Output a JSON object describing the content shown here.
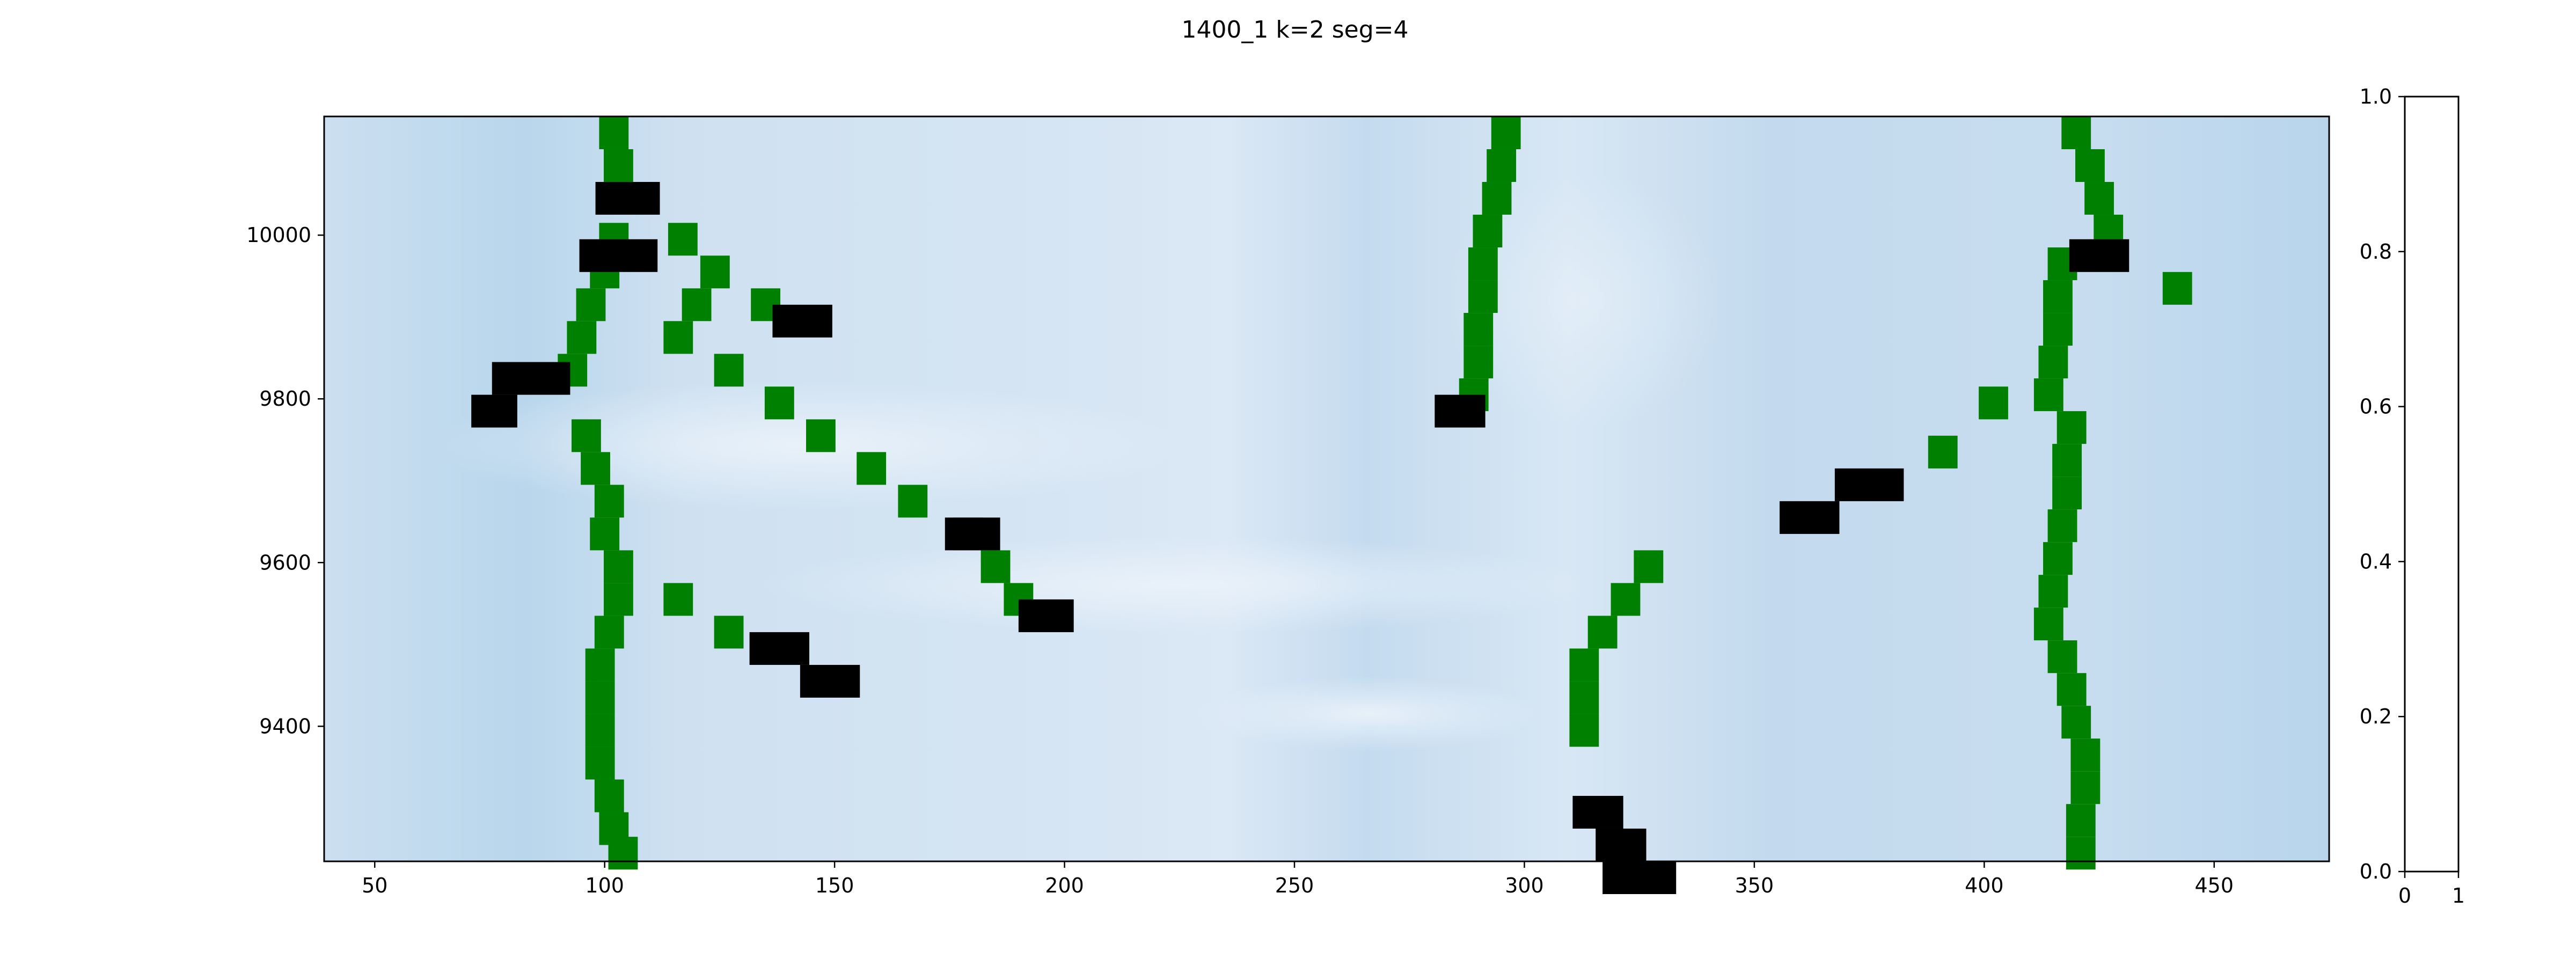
{
  "chart_data": [
    {
      "type": "heatmap",
      "title": "1400_1 k=2   seg=4",
      "xlim": [
        39,
        475
      ],
      "ylim": [
        9235,
        10145
      ],
      "x_ticks": [
        {
          "value": 50,
          "label": "50"
        },
        {
          "value": 100,
          "label": "100"
        },
        {
          "value": 150,
          "label": "150"
        },
        {
          "value": 200,
          "label": "200"
        },
        {
          "value": 250,
          "label": "250"
        },
        {
          "value": 300,
          "label": "300"
        },
        {
          "value": 350,
          "label": "350"
        },
        {
          "value": 400,
          "label": "400"
        },
        {
          "value": 450,
          "label": "450"
        }
      ],
      "y_ticks": [
        {
          "value": 9400,
          "label": "9400"
        },
        {
          "value": 9600,
          "label": "9600"
        },
        {
          "value": 9800,
          "label": "9800"
        },
        {
          "value": 10000,
          "label": "10000"
        }
      ],
      "colors": {
        "heat_light": "#e3eef8",
        "heat_mid": "#cddff0",
        "heat_dark": "#b9d6ec",
        "green_cell": "#008000",
        "black_cell": "#000000",
        "axis": "#000000"
      },
      "green_cells": [
        [
          102,
          10125
        ],
        [
          103,
          10085
        ],
        [
          102,
          9995
        ],
        [
          100,
          9955
        ],
        [
          97,
          9915
        ],
        [
          95,
          9875
        ],
        [
          93,
          9835
        ],
        [
          96,
          9755
        ],
        [
          98,
          9715
        ],
        [
          101,
          9675
        ],
        [
          100,
          9635
        ],
        [
          103,
          9595
        ],
        [
          103,
          9555
        ],
        [
          101,
          9515
        ],
        [
          99,
          9475
        ],
        [
          99,
          9435
        ],
        [
          99,
          9395
        ],
        [
          99,
          9355
        ],
        [
          101,
          9315
        ],
        [
          102,
          9275
        ],
        [
          104,
          9245
        ],
        [
          117,
          9995
        ],
        [
          124,
          9955
        ],
        [
          135,
          9915
        ],
        [
          120,
          9915
        ],
        [
          116,
          9875
        ],
        [
          127,
          9835
        ],
        [
          138,
          9795
        ],
        [
          147,
          9755
        ],
        [
          158,
          9715
        ],
        [
          167,
          9675
        ],
        [
          179,
          9635
        ],
        [
          185,
          9595
        ],
        [
          190,
          9555
        ],
        [
          116,
          9555
        ],
        [
          127,
          9515
        ],
        [
          296,
          10125
        ],
        [
          295,
          10085
        ],
        [
          294,
          10045
        ],
        [
          292,
          10005
        ],
        [
          291,
          9965
        ],
        [
          291,
          9925
        ],
        [
          290,
          9885
        ],
        [
          290,
          9845
        ],
        [
          289,
          9805
        ],
        [
          313,
          9435
        ],
        [
          313,
          9395
        ],
        [
          313,
          9475
        ],
        [
          317,
          9515
        ],
        [
          322,
          9555
        ],
        [
          327,
          9595
        ],
        [
          420,
          10125
        ],
        [
          423,
          10085
        ],
        [
          425,
          10045
        ],
        [
          427,
          10005
        ],
        [
          417,
          9965
        ],
        [
          416,
          9925
        ],
        [
          416,
          9885
        ],
        [
          415,
          9845
        ],
        [
          414,
          9805
        ],
        [
          419,
          9765
        ],
        [
          418,
          9725
        ],
        [
          418,
          9685
        ],
        [
          417,
          9645
        ],
        [
          416,
          9605
        ],
        [
          415,
          9565
        ],
        [
          414,
          9525
        ],
        [
          417,
          9485
        ],
        [
          419,
          9445
        ],
        [
          420,
          9405
        ],
        [
          422,
          9365
        ],
        [
          422,
          9325
        ],
        [
          421,
          9285
        ],
        [
          421,
          9245
        ],
        [
          442,
          9935
        ],
        [
          391,
          9735
        ],
        [
          402,
          9795
        ]
      ],
      "black_cells": [
        [
          105,
          10045,
          14
        ],
        [
          103,
          9975,
          17
        ],
        [
          143,
          9895,
          13
        ],
        [
          84,
          9825,
          17
        ],
        [
          76,
          9785,
          10
        ],
        [
          180,
          9635,
          12
        ],
        [
          196,
          9535,
          12
        ],
        [
          138,
          9495,
          13
        ],
        [
          149,
          9455,
          13
        ],
        [
          286,
          9785,
          11
        ],
        [
          316,
          9295,
          11
        ],
        [
          321,
          9255,
          11
        ],
        [
          325,
          9215,
          16
        ],
        [
          425,
          9975,
          13
        ],
        [
          375,
          9695,
          15
        ],
        [
          362,
          9655,
          13
        ]
      ]
    },
    {
      "type": "heatmap",
      "title": "",
      "y_ticks": [
        {
          "value": 0.0,
          "label": "0.0"
        },
        {
          "value": 0.2,
          "label": "0.2"
        },
        {
          "value": 0.4,
          "label": "0.4"
        },
        {
          "value": 0.6,
          "label": "0.6"
        },
        {
          "value": 0.8,
          "label": "0.8"
        },
        {
          "value": 1.0,
          "label": "1.0"
        }
      ],
      "x_ticks": [
        {
          "value": 0,
          "label": "0"
        },
        {
          "value": 1,
          "label": "1"
        }
      ],
      "ylim": [
        0,
        1
      ],
      "xlim": [
        0,
        1
      ]
    }
  ]
}
